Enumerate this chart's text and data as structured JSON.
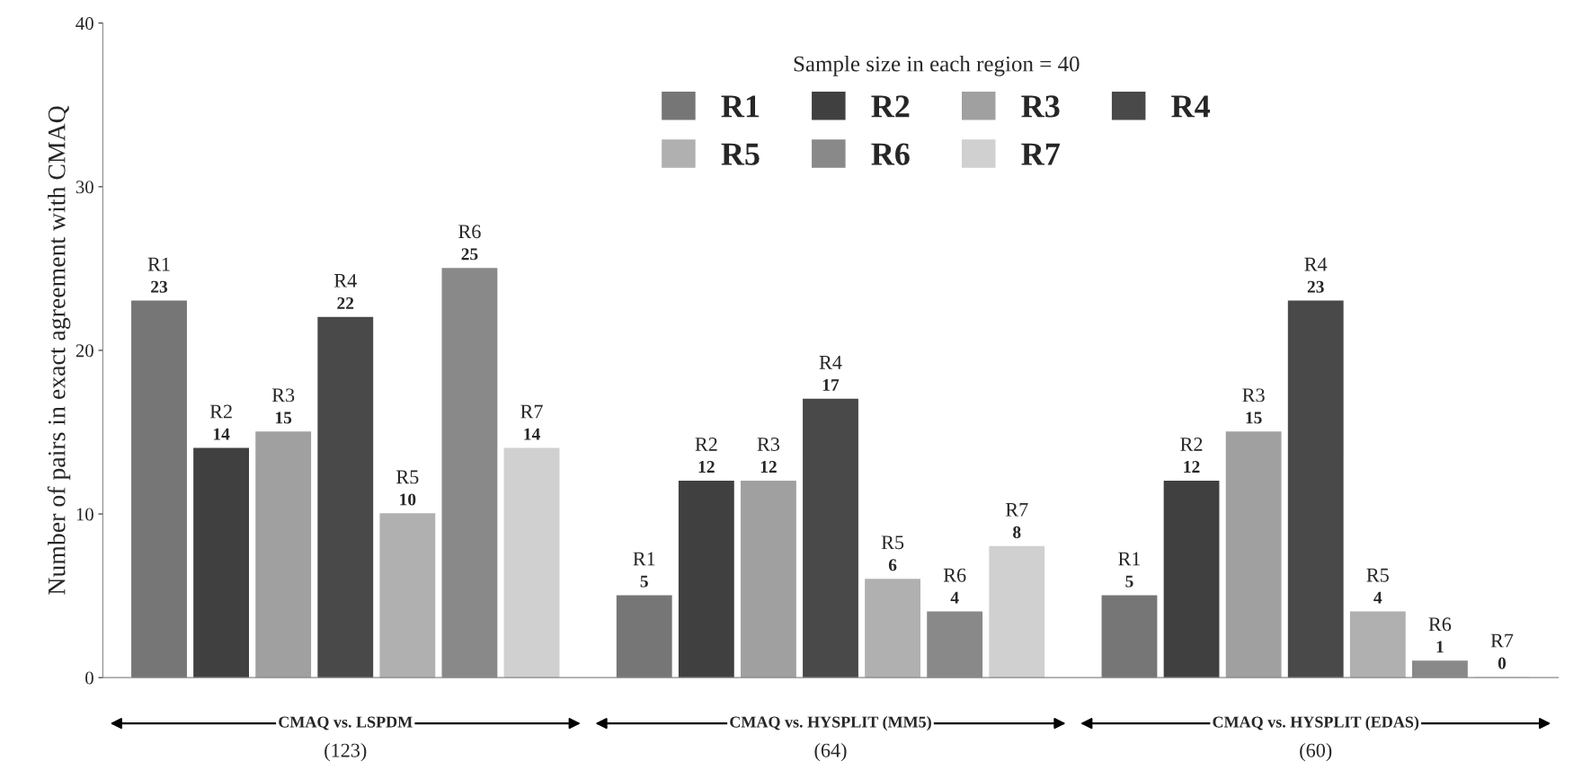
{
  "chart_data": {
    "type": "bar",
    "ylabel": "Number of pairs in exact agreement with CMAQ",
    "legend_title": "Sample size in each region = 40",
    "categories": [
      "CMAQ vs. LSPDM\n(123)",
      "CMAQ vs. HYSPLIT (MM5)\n(64)",
      "CMAQ vs. HYSPLIT (EDAS)\n(60)"
    ],
    "series": [
      {
        "name": "R1",
        "color": "#767676",
        "values": [
          23,
          5,
          5
        ]
      },
      {
        "name": "R2",
        "color": "#404040",
        "values": [
          14,
          12,
          12
        ]
      },
      {
        "name": "R3",
        "color": "#a0a0a0",
        "values": [
          15,
          12,
          15
        ]
      },
      {
        "name": "R4",
        "color": "#494949",
        "values": [
          22,
          17,
          23
        ]
      },
      {
        "name": "R5",
        "color": "#b0b0b0",
        "values": [
          10,
          6,
          4
        ]
      },
      {
        "name": "R6",
        "color": "#898989",
        "values": [
          25,
          4,
          1
        ]
      },
      {
        "name": "R7",
        "color": "#d0d0d0",
        "values": [
          14,
          8,
          0
        ]
      }
    ],
    "ylim": [
      0,
      40
    ],
    "yticks": [
      0,
      10,
      20,
      30,
      40
    ],
    "grid": false,
    "legend": "top right",
    "data_labels": true
  }
}
